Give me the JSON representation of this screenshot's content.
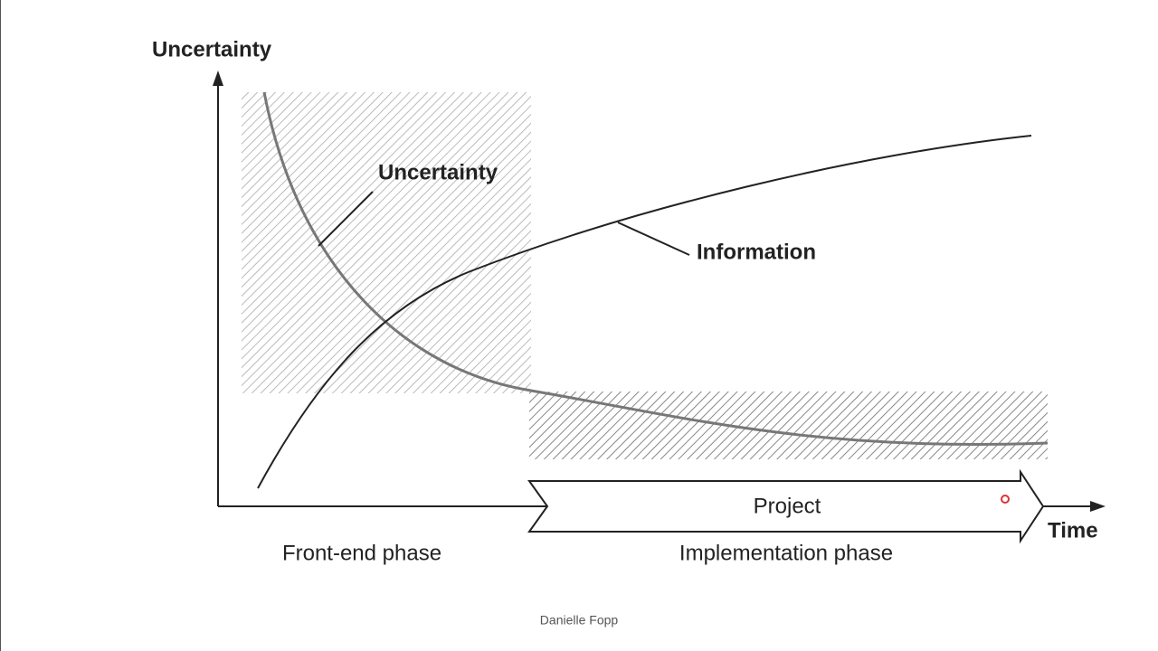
{
  "axes": {
    "y_label": "Uncertainty",
    "x_label": "Time"
  },
  "curves": [
    {
      "label": "Uncertainty"
    },
    {
      "label": "Information"
    }
  ],
  "arrow": {
    "label": "Project"
  },
  "phases": [
    {
      "label": "Front-end phase"
    },
    {
      "label": "Implementation phase"
    }
  ],
  "footer": {
    "author": "Danielle Fopp"
  }
}
